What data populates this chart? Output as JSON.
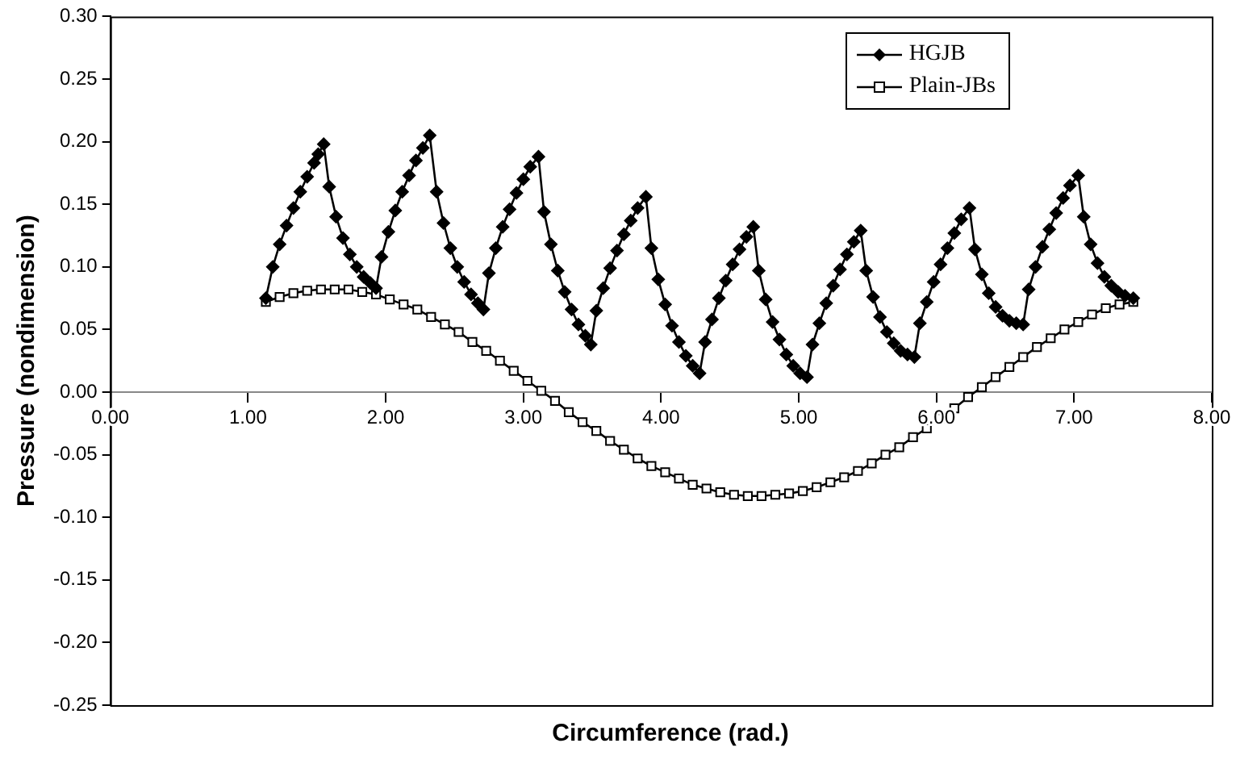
{
  "chart_data": {
    "type": "line",
    "xlabel": "Circumference (rad.)",
    "ylabel": "Pressure (nondimension)",
    "xlim": [
      0,
      8
    ],
    "ylim": [
      -0.25,
      0.3
    ],
    "xticks": [
      {
        "value": 0,
        "label": "0.00"
      },
      {
        "value": 1,
        "label": "1.00"
      },
      {
        "value": 2,
        "label": "2.00"
      },
      {
        "value": 3,
        "label": "3.00"
      },
      {
        "value": 4,
        "label": "4.00"
      },
      {
        "value": 5,
        "label": "5.00"
      },
      {
        "value": 6,
        "label": "6.00"
      },
      {
        "value": 7,
        "label": "7.00"
      },
      {
        "value": 8,
        "label": "8.00"
      }
    ],
    "yticks": [
      {
        "value": -0.25,
        "label": "-0.25"
      },
      {
        "value": -0.2,
        "label": "-0.20"
      },
      {
        "value": -0.15,
        "label": "-0.15"
      },
      {
        "value": -0.1,
        "label": "-0.10"
      },
      {
        "value": -0.05,
        "label": "-0.05"
      },
      {
        "value": 0,
        "label": "0.00"
      },
      {
        "value": 0.05,
        "label": "0.05"
      },
      {
        "value": 0.1,
        "label": "0.10"
      },
      {
        "value": 0.15,
        "label": "0.15"
      },
      {
        "value": 0.2,
        "label": "0.20"
      },
      {
        "value": 0.25,
        "label": "0.25"
      },
      {
        "value": 0.3,
        "label": "0.30"
      }
    ],
    "grid": false,
    "legend": "top right",
    "line_style": "solid",
    "series": [
      {
        "name": "HGJB",
        "color": "#000000",
        "marker": "diamond",
        "x": [
          1.13,
          1.18,
          1.23,
          1.28,
          1.33,
          1.38,
          1.43,
          1.48,
          1.51,
          1.55,
          1.59,
          1.64,
          1.69,
          1.74,
          1.79,
          1.84,
          1.89,
          1.93,
          1.97,
          2.02,
          2.07,
          2.12,
          2.17,
          2.22,
          2.27,
          2.32,
          2.37,
          2.42,
          2.47,
          2.52,
          2.57,
          2.62,
          2.67,
          2.71,
          2.75,
          2.8,
          2.85,
          2.9,
          2.95,
          3.0,
          3.05,
          3.11,
          3.15,
          3.2,
          3.25,
          3.3,
          3.35,
          3.4,
          3.45,
          3.49,
          3.53,
          3.58,
          3.63,
          3.68,
          3.73,
          3.78,
          3.83,
          3.89,
          3.93,
          3.98,
          4.03,
          4.08,
          4.13,
          4.18,
          4.23,
          4.28,
          4.32,
          4.37,
          4.42,
          4.47,
          4.52,
          4.57,
          4.62,
          4.67,
          4.71,
          4.76,
          4.81,
          4.86,
          4.91,
          4.96,
          5.01,
          5.06,
          5.1,
          5.15,
          5.2,
          5.25,
          5.3,
          5.35,
          5.4,
          5.45,
          5.49,
          5.54,
          5.59,
          5.64,
          5.69,
          5.74,
          5.79,
          5.84,
          5.88,
          5.93,
          5.98,
          6.03,
          6.08,
          6.13,
          6.18,
          6.24,
          6.28,
          6.33,
          6.38,
          6.43,
          6.48,
          6.53,
          6.58,
          6.63,
          6.67,
          6.72,
          6.77,
          6.82,
          6.87,
          6.92,
          6.97,
          7.03,
          7.07,
          7.12,
          7.17,
          7.22,
          7.27,
          7.32,
          7.37,
          7.43
        ],
        "values": [
          0.075,
          0.1,
          0.118,
          0.133,
          0.147,
          0.16,
          0.172,
          0.183,
          0.19,
          0.198,
          0.164,
          0.14,
          0.123,
          0.11,
          0.1,
          0.092,
          0.087,
          0.083,
          0.108,
          0.128,
          0.145,
          0.16,
          0.173,
          0.185,
          0.195,
          0.205,
          0.16,
          0.135,
          0.115,
          0.1,
          0.088,
          0.078,
          0.071,
          0.066,
          0.095,
          0.115,
          0.132,
          0.146,
          0.159,
          0.17,
          0.18,
          0.188,
          0.144,
          0.118,
          0.097,
          0.08,
          0.066,
          0.054,
          0.045,
          0.038,
          0.065,
          0.083,
          0.099,
          0.113,
          0.126,
          0.137,
          0.147,
          0.156,
          0.115,
          0.09,
          0.07,
          0.053,
          0.04,
          0.029,
          0.021,
          0.015,
          0.04,
          0.058,
          0.075,
          0.089,
          0.102,
          0.114,
          0.124,
          0.132,
          0.097,
          0.074,
          0.056,
          0.042,
          0.03,
          0.021,
          0.015,
          0.012,
          0.038,
          0.055,
          0.071,
          0.085,
          0.098,
          0.11,
          0.12,
          0.129,
          0.097,
          0.076,
          0.06,
          0.048,
          0.039,
          0.033,
          0.03,
          0.028,
          0.055,
          0.072,
          0.088,
          0.102,
          0.115,
          0.127,
          0.138,
          0.147,
          0.114,
          0.094,
          0.079,
          0.068,
          0.061,
          0.057,
          0.055,
          0.054,
          0.082,
          0.1,
          0.116,
          0.13,
          0.143,
          0.155,
          0.165,
          0.173,
          0.14,
          0.118,
          0.103,
          0.092,
          0.085,
          0.08,
          0.077,
          0.075
        ]
      },
      {
        "name": "Plain-JBs",
        "color": "#000000",
        "marker": "square",
        "x": [
          1.13,
          1.23,
          1.33,
          1.43,
          1.53,
          1.63,
          1.73,
          1.83,
          1.93,
          2.03,
          2.13,
          2.23,
          2.33,
          2.43,
          2.53,
          2.63,
          2.73,
          2.83,
          2.93,
          3.03,
          3.13,
          3.23,
          3.33,
          3.43,
          3.53,
          3.63,
          3.73,
          3.83,
          3.93,
          4.03,
          4.13,
          4.23,
          4.33,
          4.43,
          4.53,
          4.63,
          4.73,
          4.83,
          4.93,
          5.03,
          5.13,
          5.23,
          5.33,
          5.43,
          5.53,
          5.63,
          5.73,
          5.83,
          5.93,
          6.03,
          6.13,
          6.23,
          6.33,
          6.43,
          6.53,
          6.63,
          6.73,
          6.83,
          6.93,
          7.03,
          7.13,
          7.23,
          7.33,
          7.43
        ],
        "values": [
          0.072,
          0.076,
          0.079,
          0.081,
          0.082,
          0.082,
          0.082,
          0.08,
          0.078,
          0.074,
          0.07,
          0.066,
          0.06,
          0.054,
          0.048,
          0.04,
          0.033,
          0.025,
          0.017,
          0.009,
          0.001,
          -0.007,
          -0.016,
          -0.024,
          -0.031,
          -0.039,
          -0.046,
          -0.053,
          -0.059,
          -0.064,
          -0.069,
          -0.074,
          -0.077,
          -0.08,
          -0.082,
          -0.083,
          -0.083,
          -0.082,
          -0.081,
          -0.079,
          -0.076,
          -0.072,
          -0.068,
          -0.063,
          -0.057,
          -0.05,
          -0.044,
          -0.036,
          -0.029,
          -0.021,
          -0.013,
          -0.004,
          0.004,
          0.012,
          0.02,
          0.028,
          0.036,
          0.043,
          0.05,
          0.056,
          0.062,
          0.067,
          0.07,
          0.072
        ]
      }
    ]
  }
}
